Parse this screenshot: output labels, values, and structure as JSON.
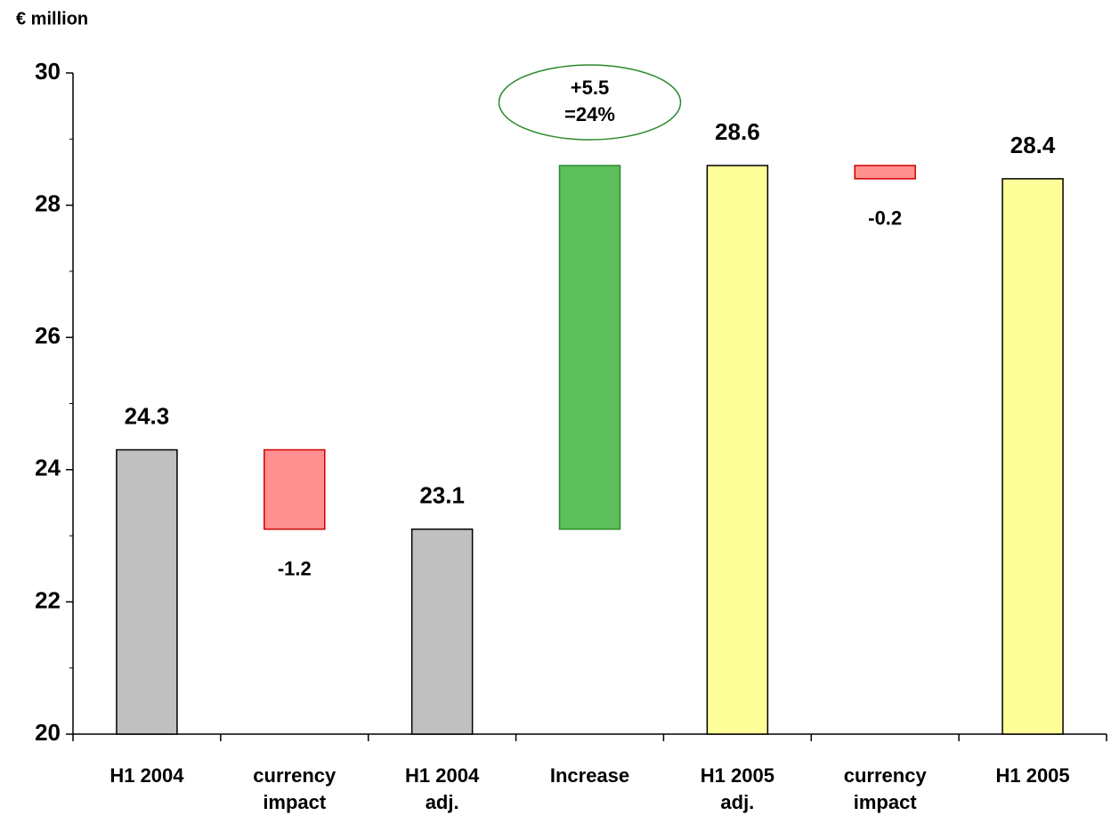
{
  "chart_data": {
    "type": "waterfall",
    "y_label": "€ million",
    "categories": [
      "H1 2004",
      "currency\nimpact",
      "H1 2004\nadj.",
      "Increase",
      "H1 2005\nadj.",
      "currency\nimpact",
      "H1 2005"
    ],
    "kinds": [
      "total",
      "delta",
      "total",
      "delta",
      "total",
      "delta",
      "total"
    ],
    "values": [
      24.3,
      -1.2,
      23.1,
      5.5,
      28.6,
      -0.2,
      28.4
    ],
    "value_labels": [
      "24.3",
      "-1.2",
      "23.1",
      "+5.5",
      "28.6",
      "-0.2",
      "28.4"
    ],
    "colors": [
      "#c0c0c0",
      "#ff9090",
      "#c0c0c0",
      "#5cbf5c",
      "#ffff99",
      "#ff9090",
      "#ffff99"
    ],
    "annotation": "=24%",
    "ylim": [
      20,
      30
    ],
    "yticks": [
      20,
      22,
      24,
      26,
      28,
      30
    ],
    "yminorticks": [
      21,
      23,
      25,
      27,
      29
    ]
  }
}
